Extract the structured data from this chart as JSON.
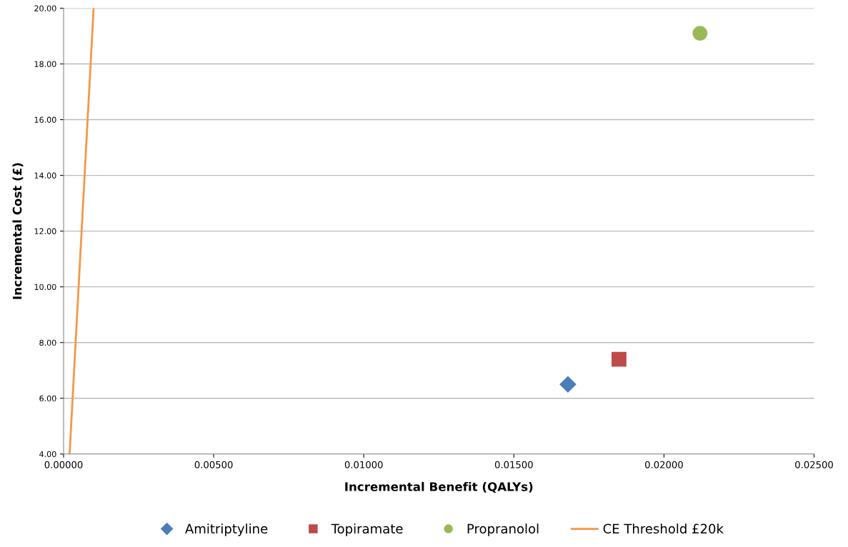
{
  "chart_data": {
    "type": "scatter",
    "xlabel": "Incremental Benefit (QALYs)",
    "ylabel": "Incremental Cost (£)",
    "series": [
      {
        "name": "Amitriptyline",
        "color": "#4a7ebb",
        "marker": "diamond",
        "x": [
          0.0168
        ],
        "values": [
          6.5
        ]
      },
      {
        "name": "Topiramate",
        "color": "#be4b48",
        "marker": "square",
        "x": [
          0.0185
        ],
        "values": [
          7.4
        ]
      },
      {
        "name": "Propranolol",
        "color": "#98b954",
        "marker": "circle",
        "x": [
          0.0212
        ],
        "values": [
          19.1
        ]
      },
      {
        "name": "CE Threshold £20k",
        "type": "line",
        "color": "#f79646",
        "marker": "none",
        "line_style": "solid",
        "x": [
          0.0002,
          0.001
        ],
        "values": [
          4,
          20
        ]
      }
    ],
    "xlim": [
      0,
      0.025
    ],
    "ylim": [
      4,
      20
    ],
    "xticks": [
      {
        "value": 0,
        "label": "0.00000"
      },
      {
        "value": 0.005,
        "label": "0.00500"
      },
      {
        "value": 0.01,
        "label": "0.01000"
      },
      {
        "value": 0.015,
        "label": "0.01500"
      },
      {
        "value": 0.02,
        "label": "0.02000"
      },
      {
        "value": 0.025,
        "label": "0.02500"
      }
    ],
    "yticks": [
      {
        "value": 4,
        "label": "4.00"
      },
      {
        "value": 6,
        "label": "6.00"
      },
      {
        "value": 8,
        "label": "8.00"
      },
      {
        "value": 10,
        "label": "10.00"
      },
      {
        "value": 12,
        "label": "12.00"
      },
      {
        "value": 14,
        "label": "14.00"
      },
      {
        "value": 16,
        "label": "16.00"
      },
      {
        "value": 18,
        "label": "18.00"
      },
      {
        "value": 20,
        "label": "20.00"
      }
    ],
    "grid": "y",
    "legend": "bottom"
  }
}
